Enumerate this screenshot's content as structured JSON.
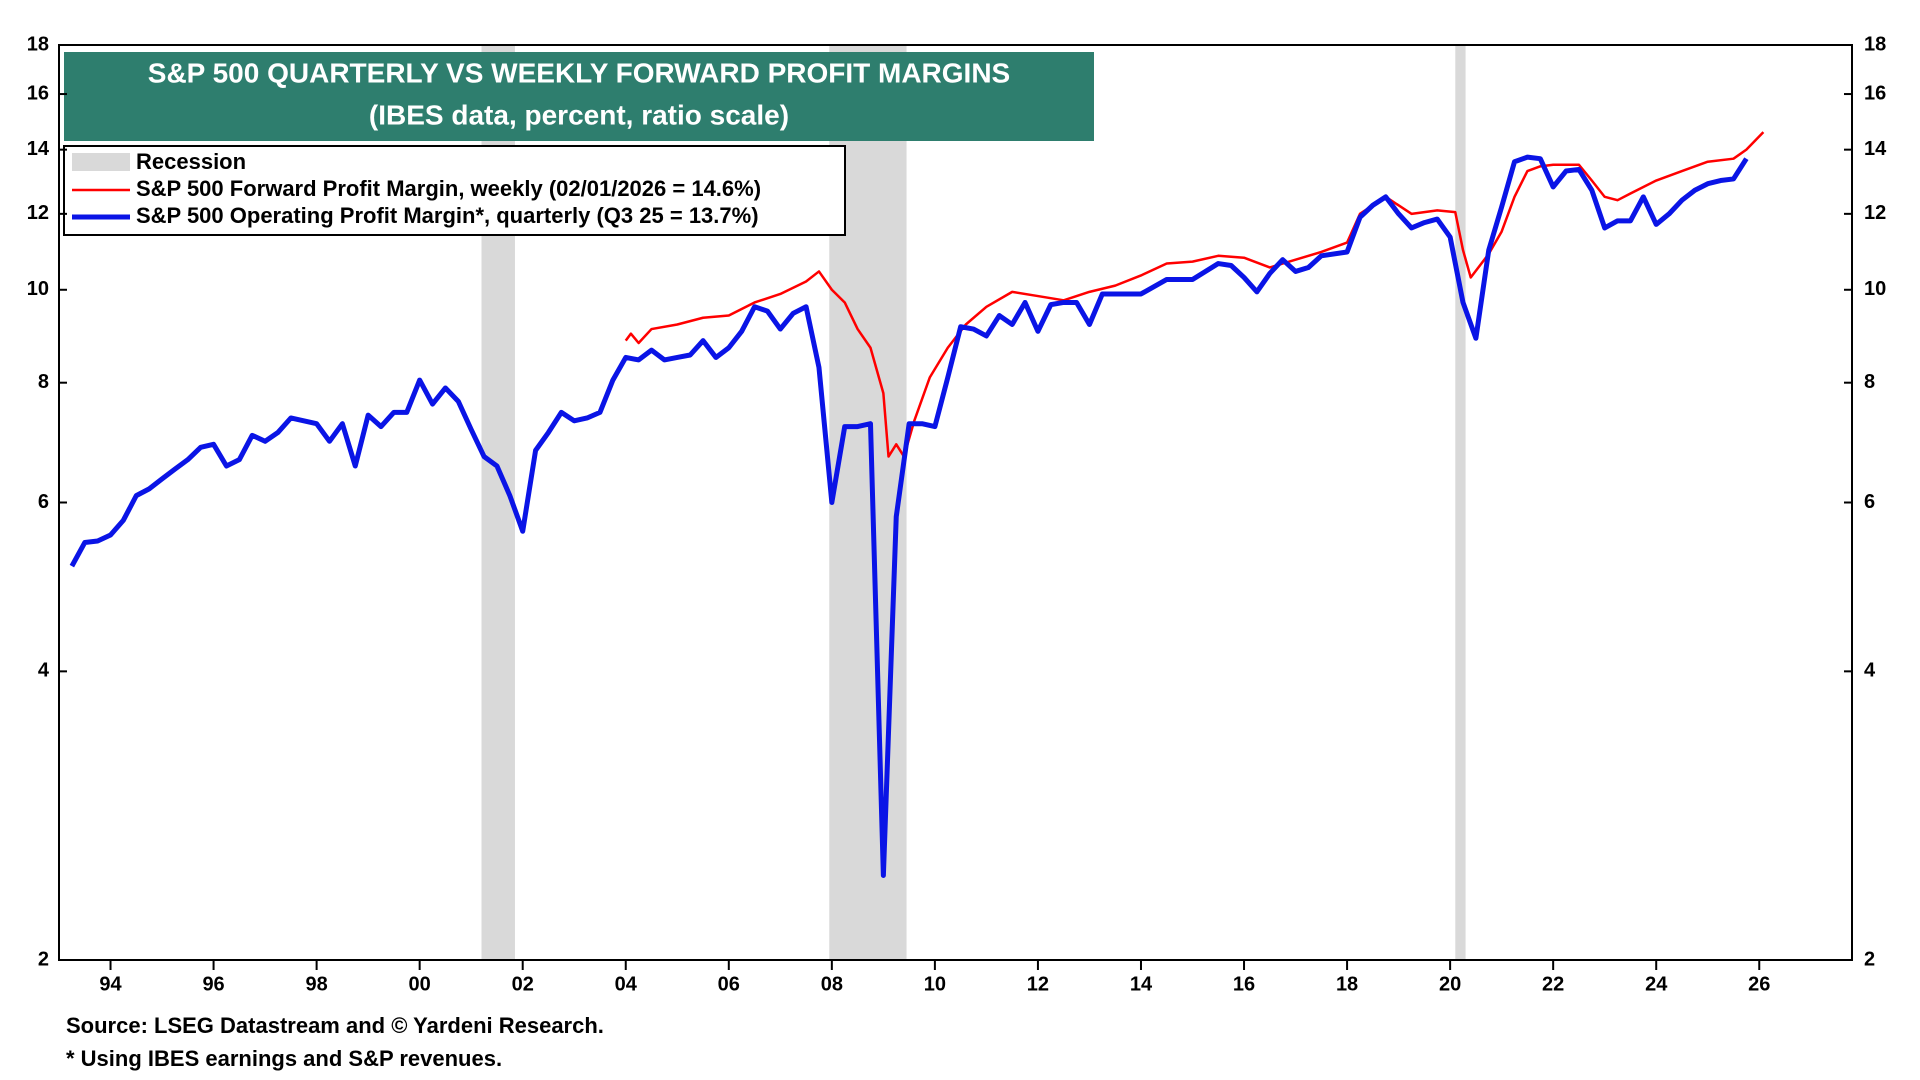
{
  "chart_data": {
    "type": "line",
    "title": "S&P 500 QUARTERLY VS WEEKLY FORWARD PROFIT MARGINS",
    "subtitle": "(IBES data, percent, ratio scale)",
    "source": "Source: LSEG Datastream and © Yardeni Research.",
    "note": "* Using IBES earnings and S&P revenues.",
    "yscale": "log",
    "xlim": [
      1993,
      2027.8
    ],
    "ylim": [
      2,
      18
    ],
    "yticks": [
      2,
      4,
      6,
      8,
      10,
      12,
      14,
      16,
      18
    ],
    "xticks": [
      {
        "value": 1994,
        "label": "94"
      },
      {
        "value": 1996,
        "label": "96"
      },
      {
        "value": 1998,
        "label": "98"
      },
      {
        "value": 2000,
        "label": "00"
      },
      {
        "value": 2002,
        "label": "02"
      },
      {
        "value": 2004,
        "label": "04"
      },
      {
        "value": 2006,
        "label": "06"
      },
      {
        "value": 2008,
        "label": "08"
      },
      {
        "value": 2010,
        "label": "10"
      },
      {
        "value": 2012,
        "label": "12"
      },
      {
        "value": 2014,
        "label": "14"
      },
      {
        "value": 2016,
        "label": "16"
      },
      {
        "value": 2018,
        "label": "18"
      },
      {
        "value": 2020,
        "label": "20"
      },
      {
        "value": 2022,
        "label": "22"
      },
      {
        "value": 2024,
        "label": "24"
      },
      {
        "value": 2026,
        "label": "26"
      }
    ],
    "recession_label": "Recession",
    "recession_color": "#d9d9d9",
    "recessions": [
      [
        2001.2,
        2001.85
      ],
      [
        2007.95,
        2009.45
      ],
      [
        2020.1,
        2020.3
      ]
    ],
    "series": [
      {
        "name": "S&P 500 Forward Profit Margin, weekly (02/01/2026 = 14.6%)",
        "color": "#ff0000",
        "x": [
          2004.0,
          2004.1,
          2004.25,
          2004.5,
          2005.0,
          2005.5,
          2006.0,
          2006.5,
          2007.0,
          2007.5,
          2007.75,
          2008.0,
          2008.25,
          2008.5,
          2008.75,
          2009.0,
          2009.1,
          2009.25,
          2009.4,
          2009.6,
          2009.9,
          2010.25,
          2010.6,
          2011.0,
          2011.5,
          2012.0,
          2012.5,
          2013.0,
          2013.5,
          2014.0,
          2014.5,
          2015.0,
          2015.5,
          2016.0,
          2016.5,
          2017.0,
          2017.5,
          2018.0,
          2018.25,
          2018.75,
          2019.25,
          2019.75,
          2020.1,
          2020.25,
          2020.4,
          2020.75,
          2021.0,
          2021.25,
          2021.5,
          2021.75,
          2022.0,
          2022.5,
          2022.75,
          2023.0,
          2023.25,
          2023.5,
          2023.75,
          2024.0,
          2024.5,
          2025.0,
          2025.5,
          2025.75,
          2026.08
        ],
        "values": [
          8.85,
          9.0,
          8.8,
          9.1,
          9.2,
          9.35,
          9.4,
          9.7,
          9.9,
          10.2,
          10.45,
          10.0,
          9.7,
          9.1,
          8.7,
          7.8,
          6.7,
          6.9,
          6.7,
          7.3,
          8.1,
          8.7,
          9.2,
          9.6,
          9.95,
          9.85,
          9.75,
          9.95,
          10.1,
          10.35,
          10.65,
          10.7,
          10.85,
          10.8,
          10.55,
          10.75,
          10.95,
          11.2,
          12.0,
          12.5,
          12.0,
          12.1,
          12.05,
          11.0,
          10.3,
          10.9,
          11.5,
          12.5,
          13.3,
          13.45,
          13.5,
          13.5,
          13.0,
          12.5,
          12.4,
          12.6,
          12.8,
          13.0,
          13.3,
          13.6,
          13.7,
          14.0,
          14.6
        ]
      },
      {
        "name": "S&P 500 Operating Profit Margin*, quarterly (Q3 25 = 13.7%)",
        "color": "#0a14e6",
        "x": [
          1993.25,
          1993.5,
          1993.75,
          1994,
          1994.25,
          1994.5,
          1994.75,
          1995,
          1995.25,
          1995.5,
          1995.75,
          1996,
          1996.25,
          1996.5,
          1996.75,
          1997,
          1997.25,
          1997.5,
          1997.75,
          1998,
          1998.25,
          1998.5,
          1998.75,
          1999,
          1999.25,
          1999.5,
          1999.75,
          2000,
          2000.25,
          2000.5,
          2000.75,
          2001,
          2001.25,
          2001.5,
          2001.75,
          2002,
          2002.25,
          2002.5,
          2002.75,
          2003,
          2003.25,
          2003.5,
          2003.75,
          2004,
          2004.25,
          2004.5,
          2004.75,
          2005,
          2005.25,
          2005.5,
          2005.75,
          2006,
          2006.25,
          2006.5,
          2006.75,
          2007,
          2007.25,
          2007.5,
          2007.75,
          2008,
          2008.25,
          2008.5,
          2008.75,
          2009,
          2009.25,
          2009.5,
          2009.75,
          2010,
          2010.25,
          2010.5,
          2010.75,
          2011,
          2011.25,
          2011.5,
          2011.75,
          2012,
          2012.25,
          2012.5,
          2012.75,
          2013,
          2013.25,
          2013.75,
          2014,
          2014.5,
          2015,
          2015.5,
          2015.75,
          2016,
          2016.25,
          2016.5,
          2016.75,
          2017,
          2017.25,
          2017.5,
          2018,
          2018.25,
          2018.5,
          2018.75,
          2019,
          2019.25,
          2019.5,
          2019.75,
          2020,
          2020.25,
          2020.5,
          2020.75,
          2021,
          2021.25,
          2021.5,
          2021.75,
          2022,
          2022.25,
          2022.5,
          2022.75,
          2023,
          2023.25,
          2023.5,
          2023.75,
          2024,
          2024.25,
          2024.5,
          2024.75,
          2025,
          2025.25,
          2025.5,
          2025.75
        ],
        "values": [
          5.15,
          5.45,
          5.47,
          5.55,
          5.75,
          6.1,
          6.2,
          6.35,
          6.5,
          6.65,
          6.85,
          6.9,
          6.55,
          6.65,
          7.05,
          6.95,
          7.1,
          7.35,
          7.3,
          7.25,
          6.95,
          7.25,
          6.55,
          7.4,
          7.2,
          7.45,
          7.45,
          8.05,
          7.6,
          7.9,
          7.65,
          7.15,
          6.7,
          6.55,
          6.1,
          5.6,
          6.8,
          7.1,
          7.45,
          7.3,
          7.35,
          7.45,
          8.05,
          8.5,
          8.45,
          8.65,
          8.45,
          8.5,
          8.55,
          8.85,
          8.5,
          8.7,
          9.05,
          9.6,
          9.5,
          9.1,
          9.45,
          9.6,
          8.3,
          6.0,
          7.2,
          7.2,
          7.25,
          2.45,
          5.8,
          7.25,
          7.25,
          7.2,
          8.1,
          9.15,
          9.1,
          8.95,
          9.4,
          9.2,
          9.7,
          9.05,
          9.65,
          9.7,
          9.7,
          9.2,
          9.9,
          9.9,
          9.9,
          10.25,
          10.25,
          10.65,
          10.6,
          10.3,
          9.95,
          10.4,
          10.75,
          10.45,
          10.55,
          10.85,
          10.95,
          11.9,
          12.25,
          12.5,
          12.0,
          11.6,
          11.75,
          11.85,
          11.35,
          9.7,
          8.9,
          11.0,
          12.2,
          13.6,
          13.75,
          13.7,
          12.8,
          13.3,
          13.35,
          12.7,
          11.6,
          11.8,
          11.8,
          12.5,
          11.7,
          12.0,
          12.4,
          12.7,
          12.9,
          13.0,
          13.05,
          13.7
        ]
      }
    ]
  }
}
